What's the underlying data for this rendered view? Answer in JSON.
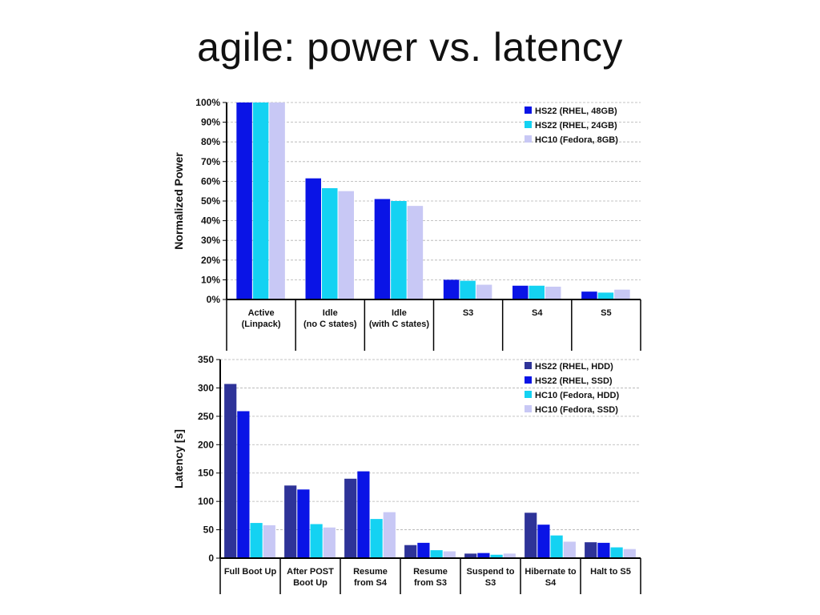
{
  "slide": {
    "title": "agile: power vs. latency"
  },
  "colors": {
    "hs22_48gb": "#0a14e6",
    "hs22_24gb": "#14d2f2",
    "hc10_8gb": "#c8c8f5",
    "hs22_hdd": "#2e3398",
    "hs22_ssd": "#0a14e6",
    "hc10_hdd": "#14d2f2",
    "hc10_ssd": "#c8c8f5",
    "grid": "#b0b0b0",
    "axis": "#000000"
  },
  "chart_data": [
    {
      "type": "bar",
      "title": "",
      "ylabel": "Normalized Power",
      "xlabel": "",
      "ylim": [
        0,
        100
      ],
      "yticks": [
        0,
        10,
        20,
        30,
        40,
        50,
        60,
        70,
        80,
        90,
        100
      ],
      "ytick_labels": [
        "0%",
        "10%",
        "20%",
        "30%",
        "40%",
        "50%",
        "60%",
        "70%",
        "80%",
        "90%",
        "100%"
      ],
      "grid": true,
      "legend_position": "top-right",
      "categories": [
        [
          "Active",
          "(Linpack)"
        ],
        [
          "Idle",
          "(no C states)"
        ],
        [
          "Idle",
          "(with C states)"
        ],
        [
          "S3"
        ],
        [
          "S4"
        ],
        [
          "S5"
        ]
      ],
      "series": [
        {
          "name": "HS22 (RHEL, 48GB)",
          "color": "#0a14e6",
          "values": [
            100,
            61.5,
            51,
            10,
            7,
            4
          ]
        },
        {
          "name": "HS22 (RHEL, 24GB)",
          "color": "#14d2f2",
          "values": [
            100,
            56.5,
            50,
            9.5,
            7,
            3.5
          ]
        },
        {
          "name": "HC10 (Fedora, 8GB)",
          "color": "#c8c8f5",
          "values": [
            100,
            55,
            47.5,
            7.5,
            6.5,
            5
          ]
        }
      ]
    },
    {
      "type": "bar",
      "title": "",
      "ylabel": "Latency [s]",
      "xlabel": "",
      "ylim": [
        0,
        350
      ],
      "yticks": [
        0,
        50,
        100,
        150,
        200,
        250,
        300,
        350
      ],
      "ytick_labels": [
        "0",
        "50",
        "100",
        "150",
        "200",
        "250",
        "300",
        "350"
      ],
      "grid": true,
      "legend_position": "top-right",
      "categories": [
        [
          "Full Boot Up"
        ],
        [
          "After POST",
          "Boot Up"
        ],
        [
          "Resume",
          "from S4"
        ],
        [
          "Resume",
          "from S3"
        ],
        [
          "Suspend to",
          "S3"
        ],
        [
          "Hibernate to",
          "S4"
        ],
        [
          "Halt to S5"
        ]
      ],
      "series": [
        {
          "name": "HS22 (RHEL, HDD)",
          "color": "#2e3398",
          "values": [
            307,
            128,
            140,
            23,
            8,
            80,
            28
          ]
        },
        {
          "name": "HS22 (RHEL, SSD)",
          "color": "#0a14e6",
          "values": [
            259,
            121,
            153,
            27,
            9,
            59,
            27
          ]
        },
        {
          "name": "HC10 (Fedora, HDD)",
          "color": "#14d2f2",
          "values": [
            62,
            60,
            69,
            14,
            6,
            40,
            19
          ]
        },
        {
          "name": "HC10 (Fedora, SSD)",
          "color": "#c8c8f5",
          "values": [
            58,
            54,
            81,
            12,
            8,
            29,
            16
          ]
        }
      ]
    }
  ]
}
